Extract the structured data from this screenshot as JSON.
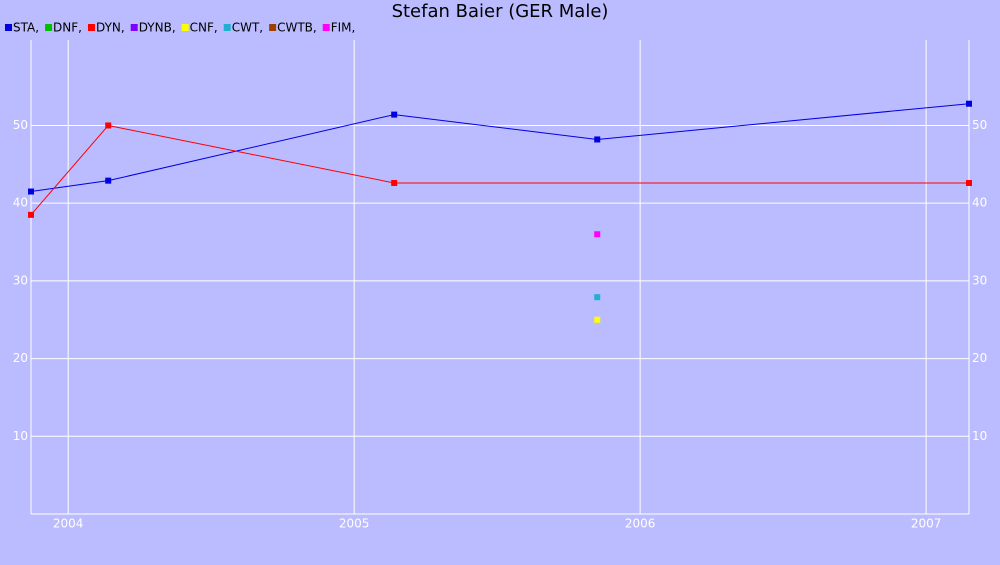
{
  "chart_data": {
    "type": "line",
    "title": "Stefan Baier (GER Male)",
    "xlim": [
      2003.87,
      2007.15
    ],
    "xticks": [
      2004,
      2005,
      2006,
      2007
    ],
    "ylim": [
      0,
      61
    ],
    "yticks": [
      10,
      20,
      30,
      40,
      50
    ],
    "grid": true,
    "series": [
      {
        "name": "STA,",
        "color": "#0000e0",
        "x": [
          2003.87,
          2004.14,
          2005.14,
          2005.85,
          2007.15
        ],
        "values": [
          41.5,
          42.9,
          51.4,
          48.2,
          52.8
        ]
      },
      {
        "name": "DNF,",
        "color": "#00c000",
        "x": [],
        "values": []
      },
      {
        "name": "DYN,",
        "color": "#ff0000",
        "x": [
          2003.87,
          2004.14,
          2005.14,
          2007.15
        ],
        "values": [
          38.5,
          50,
          42.6,
          42.6
        ]
      },
      {
        "name": "DYNB,",
        "color": "#8000ff",
        "x": [],
        "values": []
      },
      {
        "name": "CNF,",
        "color": "#ffff00",
        "x": [
          2005.85
        ],
        "values": [
          25
        ]
      },
      {
        "name": "CWT,",
        "color": "#20b0d0",
        "x": [
          2005.85
        ],
        "values": [
          27.9
        ]
      },
      {
        "name": "CWTB,",
        "color": "#a04000",
        "x": [],
        "values": []
      },
      {
        "name": "FIM,",
        "color": "#ff00ff",
        "x": [
          2005.85
        ],
        "values": [
          36
        ]
      }
    ]
  }
}
